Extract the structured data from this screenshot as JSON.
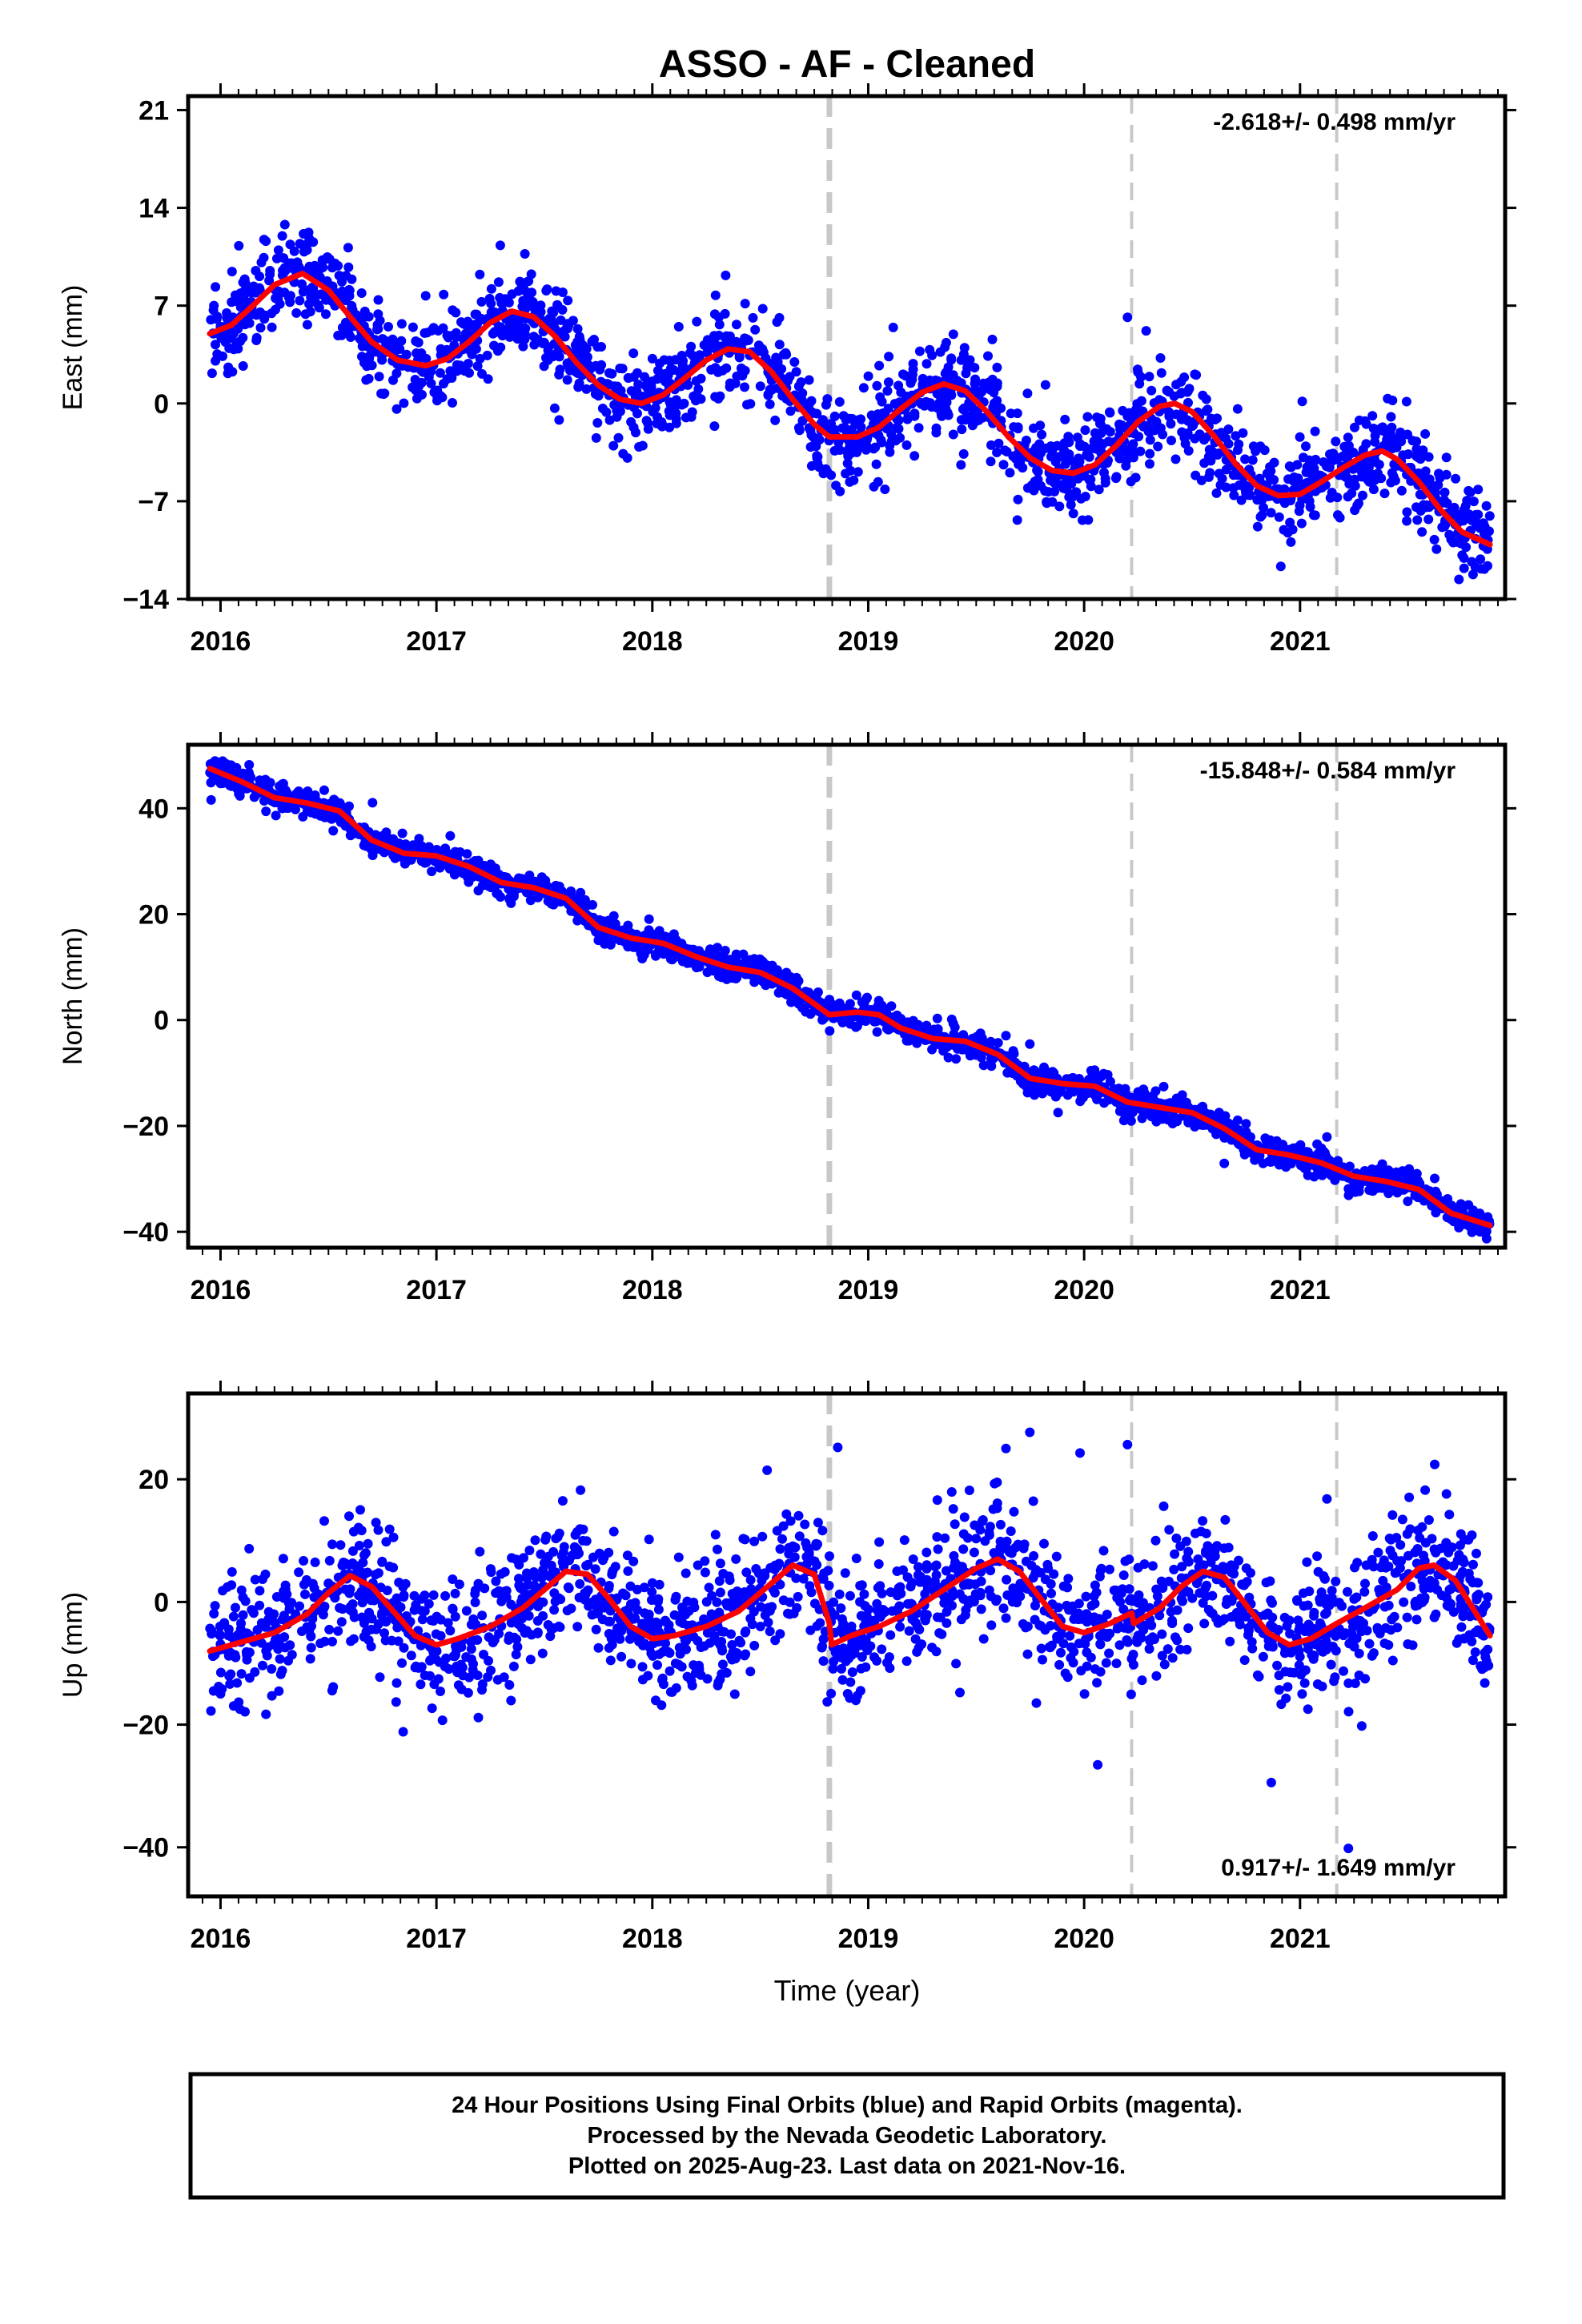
{
  "title": "ASSO  - AF - Cleaned",
  "xlabel": "Time (year)",
  "colors": {
    "data": "#0000ff",
    "model": "#ff0000",
    "offset": "#c8c8c8",
    "frame": "#000000"
  },
  "footer": {
    "line1": "24 Hour Positions Using Final Orbits (blue) and Rapid Orbits (magenta).",
    "line2": "Processed by the Nevada Geodetic Laboratory.",
    "line3": "Plotted on 2025-Aug-23. Last data on 2021-Nov-16."
  },
  "chart_data": [
    {
      "type": "scatter",
      "component": "east",
      "ylabel": "East (mm)",
      "rate_label": "-2.618+/- 0.498 mm/yr",
      "xlim": [
        2015.85,
        2021.95
      ],
      "ylim": [
        -14,
        22
      ],
      "xticks": [
        2016,
        2017,
        2018,
        2019,
        2020,
        2021
      ],
      "yticks": [
        21,
        14,
        7,
        0,
        -7,
        -14
      ],
      "yticklabels": [
        "21",
        "14",
        "7",
        "0",
        "−7",
        "−14"
      ],
      "offsets": [
        {
          "x": 2018.82,
          "style": "thick"
        },
        {
          "x": 2020.22,
          "style": "thin"
        },
        {
          "x": 2021.17,
          "style": "thin"
        }
      ],
      "model_curve": [
        [
          2015.95,
          5.0
        ],
        [
          2016.05,
          5.6
        ],
        [
          2016.15,
          7.0
        ],
        [
          2016.25,
          8.5
        ],
        [
          2016.38,
          9.3
        ],
        [
          2016.5,
          8.1
        ],
        [
          2016.6,
          6.2
        ],
        [
          2016.7,
          4.4
        ],
        [
          2016.82,
          3.1
        ],
        [
          2016.95,
          2.7
        ],
        [
          2017.05,
          3.2
        ],
        [
          2017.15,
          4.4
        ],
        [
          2017.25,
          5.8
        ],
        [
          2017.35,
          6.6
        ],
        [
          2017.45,
          6.2
        ],
        [
          2017.55,
          4.8
        ],
        [
          2017.65,
          2.9
        ],
        [
          2017.75,
          1.3
        ],
        [
          2017.85,
          0.3
        ],
        [
          2017.95,
          0.0
        ],
        [
          2018.05,
          0.6
        ],
        [
          2018.15,
          1.8
        ],
        [
          2018.25,
          3.1
        ],
        [
          2018.35,
          3.9
        ],
        [
          2018.45,
          3.7
        ],
        [
          2018.55,
          2.3
        ],
        [
          2018.65,
          0.3
        ],
        [
          2018.75,
          -1.5
        ],
        [
          2018.82,
          -2.4
        ],
        [
          2018.95,
          -2.4
        ],
        [
          2019.05,
          -1.7
        ],
        [
          2019.15,
          -0.4
        ],
        [
          2019.25,
          0.8
        ],
        [
          2019.35,
          1.4
        ],
        [
          2019.45,
          0.9
        ],
        [
          2019.55,
          -0.6
        ],
        [
          2019.65,
          -2.4
        ],
        [
          2019.75,
          -3.9
        ],
        [
          2019.85,
          -4.8
        ],
        [
          2019.95,
          -5.0
        ],
        [
          2020.05,
          -4.4
        ],
        [
          2020.15,
          -3.0
        ],
        [
          2020.25,
          -1.3
        ],
        [
          2020.35,
          -0.2
        ],
        [
          2020.42,
          0.0
        ],
        [
          2020.5,
          -0.6
        ],
        [
          2020.6,
          -2.3
        ],
        [
          2020.7,
          -4.3
        ],
        [
          2020.8,
          -5.9
        ],
        [
          2020.9,
          -6.6
        ],
        [
          2021.0,
          -6.5
        ],
        [
          2021.1,
          -5.6
        ],
        [
          2021.2,
          -4.6
        ],
        [
          2021.3,
          -3.7
        ],
        [
          2021.38,
          -3.4
        ],
        [
          2021.45,
          -4.0
        ],
        [
          2021.55,
          -5.6
        ],
        [
          2021.65,
          -7.6
        ],
        [
          2021.75,
          -9.2
        ],
        [
          2021.88,
          -10.1
        ]
      ],
      "scatter": {
        "sd": 1.6,
        "n": 1900,
        "outlier_rate": 0.03,
        "outlier_sd": 3.5
      }
    },
    {
      "type": "scatter",
      "component": "north",
      "ylabel": "North (mm)",
      "rate_label": "-15.848+/- 0.584 mm/yr",
      "xlim": [
        2015.85,
        2021.95
      ],
      "ylim": [
        -43,
        52
      ],
      "xticks": [
        2016,
        2017,
        2018,
        2019,
        2020,
        2021
      ],
      "yticks": [
        40,
        20,
        0,
        -20,
        -40
      ],
      "yticklabels": [
        "40",
        "20",
        "0",
        "−20",
        "−40"
      ],
      "offsets": [
        {
          "x": 2018.82,
          "style": "thick"
        },
        {
          "x": 2020.22,
          "style": "thin"
        },
        {
          "x": 2021.17,
          "style": "thin"
        }
      ],
      "model_curve": [
        [
          2015.95,
          47.5
        ],
        [
          2016.1,
          45.0
        ],
        [
          2016.25,
          42.0
        ],
        [
          2016.4,
          41.0
        ],
        [
          2016.55,
          39.5
        ],
        [
          2016.7,
          34.0
        ],
        [
          2016.85,
          31.5
        ],
        [
          2017.0,
          31.0
        ],
        [
          2017.15,
          29.0
        ],
        [
          2017.3,
          26.0
        ],
        [
          2017.45,
          25.0
        ],
        [
          2017.6,
          23.0
        ],
        [
          2017.75,
          17.5
        ],
        [
          2017.9,
          15.5
        ],
        [
          2018.05,
          14.5
        ],
        [
          2018.2,
          12.0
        ],
        [
          2018.35,
          10.0
        ],
        [
          2018.5,
          9.0
        ],
        [
          2018.65,
          6.0
        ],
        [
          2018.82,
          1.0
        ],
        [
          2018.95,
          1.5
        ],
        [
          2019.05,
          1.0
        ],
        [
          2019.15,
          -1.5
        ],
        [
          2019.3,
          -3.5
        ],
        [
          2019.45,
          -4.0
        ],
        [
          2019.6,
          -6.5
        ],
        [
          2019.75,
          -11.0
        ],
        [
          2019.9,
          -12.0
        ],
        [
          2020.05,
          -12.5
        ],
        [
          2020.2,
          -15.5
        ],
        [
          2020.35,
          -16.5
        ],
        [
          2020.5,
          -17.5
        ],
        [
          2020.65,
          -20.5
        ],
        [
          2020.8,
          -24.5
        ],
        [
          2020.95,
          -25.5
        ],
        [
          2021.1,
          -27.0
        ],
        [
          2021.25,
          -29.5
        ],
        [
          2021.4,
          -30.5
        ],
        [
          2021.55,
          -32.0
        ],
        [
          2021.7,
          -36.5
        ],
        [
          2021.88,
          -38.8
        ]
      ],
      "scatter": {
        "sd": 1.3,
        "n": 1900,
        "outlier_rate": 0.02,
        "outlier_sd": 3.0
      }
    },
    {
      "type": "scatter",
      "component": "up",
      "ylabel": "Up (mm)",
      "rate_label": "0.917+/- 1.649 mm/yr",
      "xlim": [
        2015.85,
        2021.95
      ],
      "ylim": [
        -48,
        34
      ],
      "xticks": [
        2016,
        2017,
        2018,
        2019,
        2020,
        2021
      ],
      "yticks": [
        20,
        0,
        -20,
        -40
      ],
      "yticklabels": [
        "20",
        "0",
        "−20",
        "−40"
      ],
      "offsets": [
        {
          "x": 2018.82,
          "style": "thick"
        },
        {
          "x": 2020.22,
          "style": "thin"
        },
        {
          "x": 2021.17,
          "style": "thin"
        }
      ],
      "model_curve": [
        [
          2015.95,
          -8.0
        ],
        [
          2016.1,
          -6.5
        ],
        [
          2016.25,
          -5.0
        ],
        [
          2016.4,
          -2.0
        ],
        [
          2016.5,
          1.5
        ],
        [
          2016.6,
          4.3
        ],
        [
          2016.7,
          2.5
        ],
        [
          2016.8,
          -1.5
        ],
        [
          2016.9,
          -5.5
        ],
        [
          2017.0,
          -7.0
        ],
        [
          2017.1,
          -6.0
        ],
        [
          2017.25,
          -4.0
        ],
        [
          2017.4,
          -1.0
        ],
        [
          2017.5,
          2.0
        ],
        [
          2017.6,
          5.0
        ],
        [
          2017.7,
          4.5
        ],
        [
          2017.8,
          0.5
        ],
        [
          2017.9,
          -4.0
        ],
        [
          2018.0,
          -6.0
        ],
        [
          2018.1,
          -5.5
        ],
        [
          2018.25,
          -4.0
        ],
        [
          2018.4,
          -1.5
        ],
        [
          2018.55,
          3.0
        ],
        [
          2018.65,
          6.0
        ],
        [
          2018.75,
          4.5
        ],
        [
          2018.82,
          -3.5
        ],
        [
          2018.83,
          -7.0
        ],
        [
          2018.92,
          -5.5
        ],
        [
          2019.05,
          -4.0
        ],
        [
          2019.2,
          -1.5
        ],
        [
          2019.35,
          2.0
        ],
        [
          2019.5,
          5.5
        ],
        [
          2019.6,
          7.0
        ],
        [
          2019.7,
          5.0
        ],
        [
          2019.8,
          0.5
        ],
        [
          2019.9,
          -4.0
        ],
        [
          2020.0,
          -5.0
        ],
        [
          2020.12,
          -3.5
        ],
        [
          2020.22,
          -1.8
        ],
        [
          2020.23,
          -3.5
        ],
        [
          2020.35,
          -1.0
        ],
        [
          2020.45,
          2.5
        ],
        [
          2020.55,
          5.0
        ],
        [
          2020.65,
          4.0
        ],
        [
          2020.75,
          -0.5
        ],
        [
          2020.85,
          -5.0
        ],
        [
          2020.95,
          -7.0
        ],
        [
          2021.05,
          -6.0
        ],
        [
          2021.17,
          -3.5
        ],
        [
          2021.3,
          -1.0
        ],
        [
          2021.45,
          2.0
        ],
        [
          2021.55,
          5.5
        ],
        [
          2021.62,
          6.0
        ],
        [
          2021.72,
          3.5
        ],
        [
          2021.8,
          -1.0
        ],
        [
          2021.88,
          -5.5
        ]
      ],
      "scatter": {
        "sd": 5.0,
        "n": 1900,
        "outlier_rate": 0.04,
        "outlier_sd": 12.0
      }
    }
  ]
}
